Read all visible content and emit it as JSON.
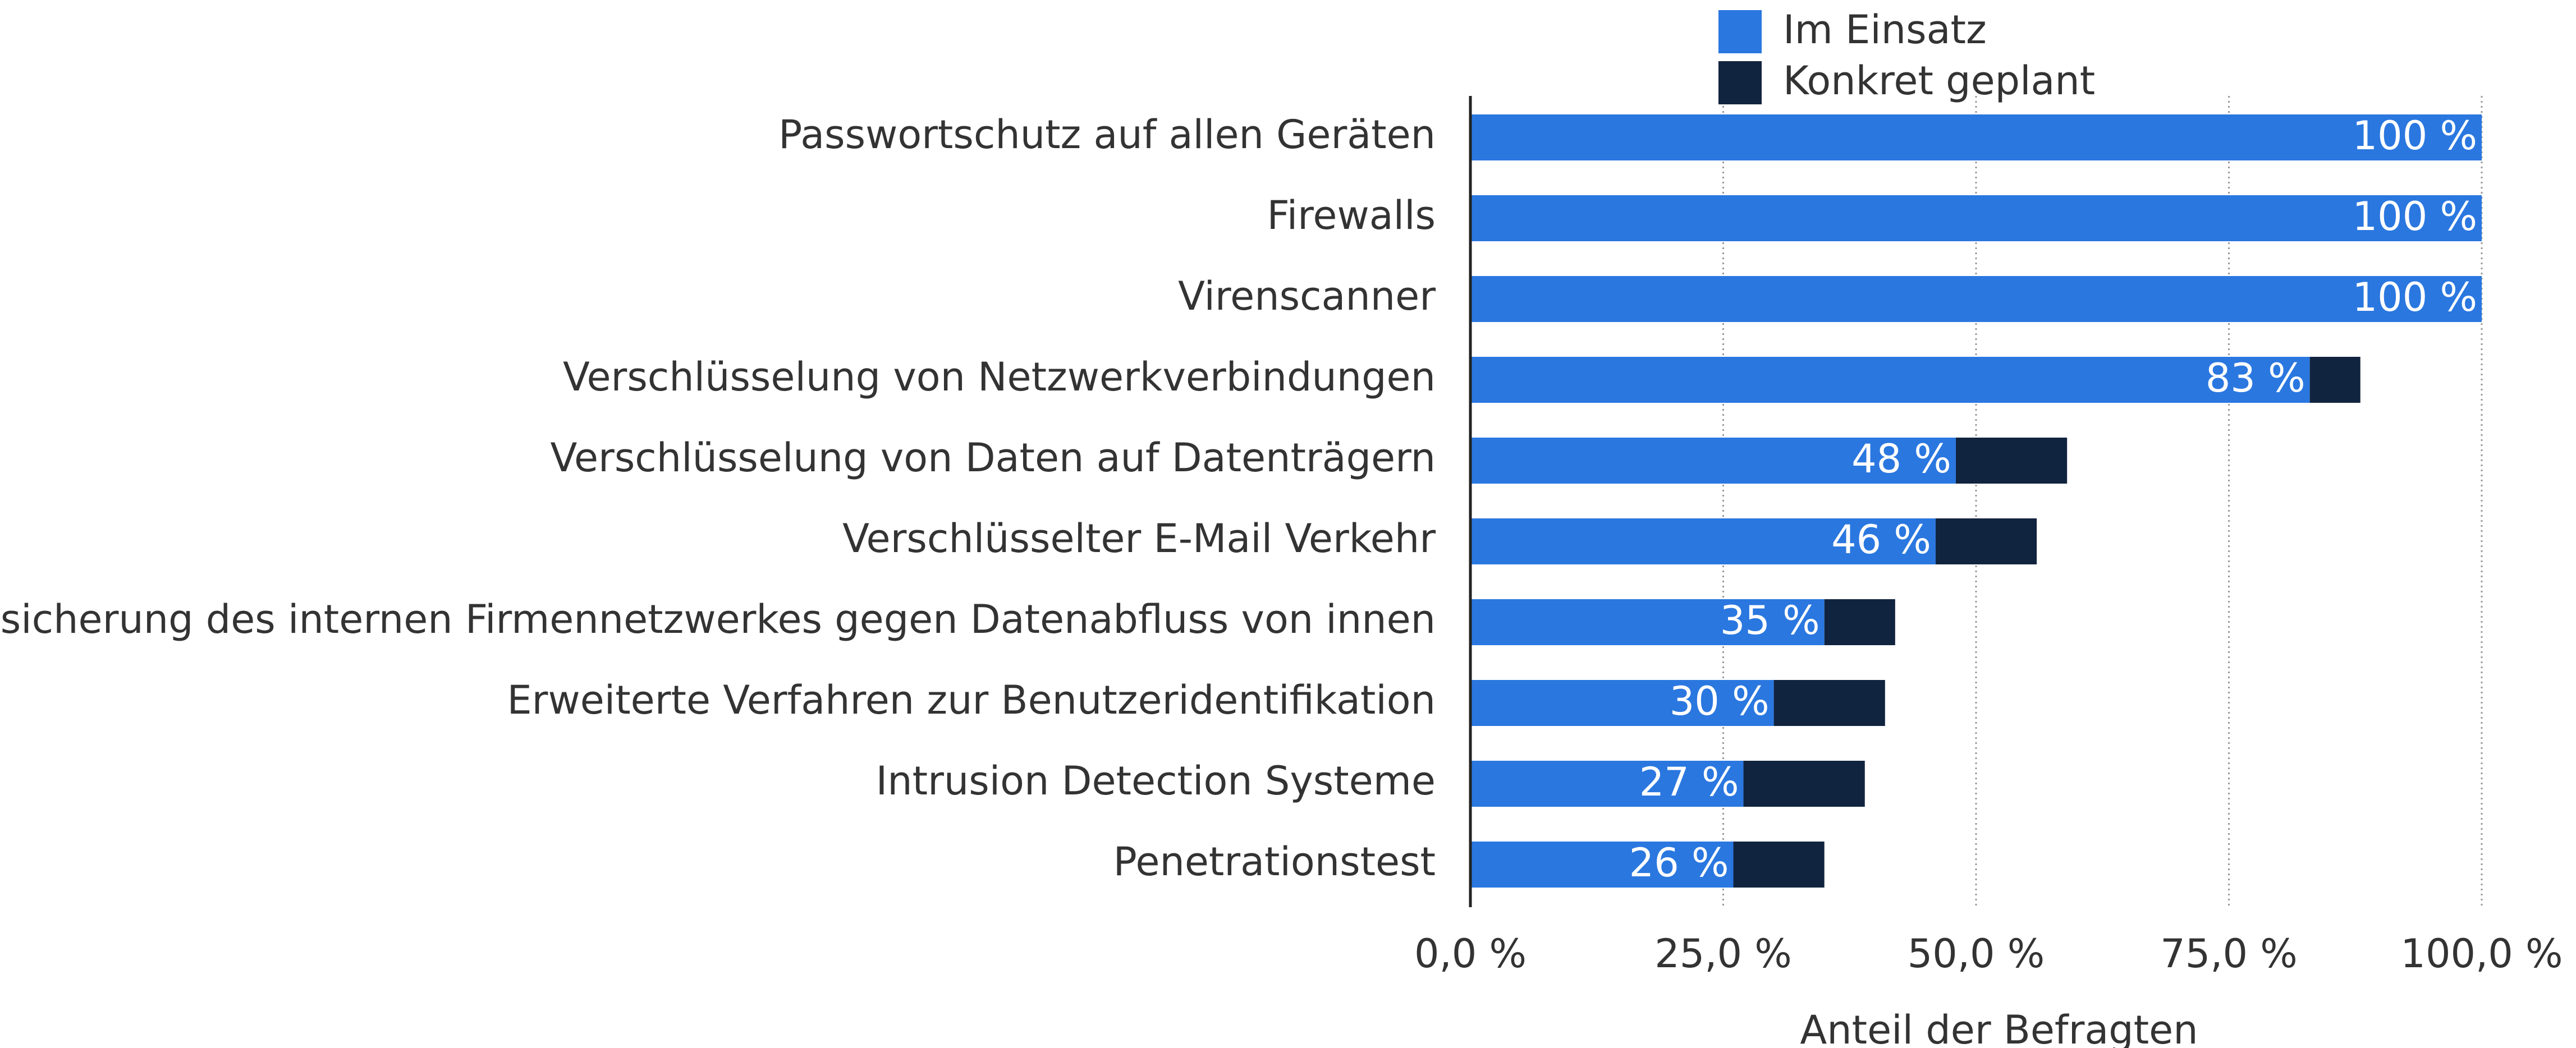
{
  "chart_data": {
    "type": "stacked-barh",
    "categories": [
      "Passwortschutz auf allen Geräten",
      "Firewalls",
      "Virenscanner",
      "Verschlüsselung von Netzwerkverbindungen",
      "Verschlüsselung von Daten auf Datenträgern",
      "Verschlüsselter E-Mail Verkehr",
      "Absicherung des internen Firmennetzwerkes gegen Datenabfluss von innen",
      "Erweiterte Verfahren zur Benutzeridentifikation",
      "Intrusion Detection Systeme",
      "Penetrationstest"
    ],
    "series": [
      {
        "name": "Im Einsatz",
        "color": "#2a77e0",
        "values": [
          100,
          100,
          100,
          83,
          48,
          46,
          35,
          30,
          27,
          26
        ],
        "value_labels": [
          "100 %",
          "100 %",
          "100 %",
          "83 %",
          "48 %",
          "46 %",
          "35 %",
          "30 %",
          "27 %",
          "26 %"
        ]
      },
      {
        "name": "Konkret geplant",
        "color": "#11243f",
        "values": [
          0,
          0,
          0,
          5,
          11,
          10,
          7,
          11,
          12,
          9
        ]
      }
    ],
    "xlabel": "Anteil der Befragten",
    "xlim": [
      0,
      100
    ],
    "xticks": [
      {
        "value": 0,
        "label": "0,0 %"
      },
      {
        "value": 25,
        "label": "25,0 %"
      },
      {
        "value": 50,
        "label": "50,0 %"
      },
      {
        "value": 75,
        "label": "75,0 %"
      },
      {
        "value": 100,
        "label": "100,0 %"
      }
    ],
    "grid": true,
    "legend": "top"
  }
}
